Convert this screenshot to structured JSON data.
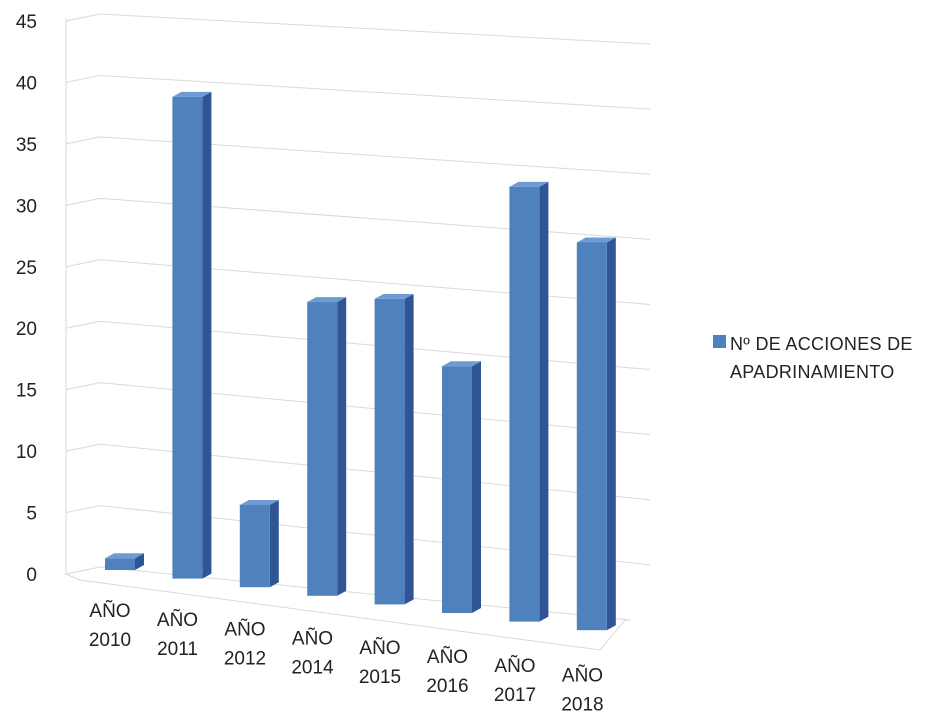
{
  "chart_data": {
    "type": "bar",
    "title": "",
    "xlabel": "",
    "ylabel": "",
    "categories": [
      [
        "AÑO",
        "2010"
      ],
      [
        "AÑO",
        "2011"
      ],
      [
        "AÑO",
        "2012"
      ],
      [
        "AÑO",
        "2014"
      ],
      [
        "AÑO",
        "2015"
      ],
      [
        "AÑO",
        "2016"
      ],
      [
        "AÑO",
        "2017"
      ],
      [
        "AÑO",
        "2018"
      ]
    ],
    "series": [
      {
        "name": "Nº DE ACCIONES DE APADRINAMIENTO",
        "color": "#4F81BD",
        "values": [
          1,
          41,
          7,
          25,
          26,
          21,
          37,
          33
        ]
      }
    ],
    "ylim": [
      0,
      45
    ],
    "yticks": [
      "0",
      "5",
      "10",
      "15",
      "20",
      "25",
      "30",
      "35",
      "40",
      "45"
    ],
    "grid": true,
    "legend_position": "right",
    "style": "3d-perspective"
  }
}
